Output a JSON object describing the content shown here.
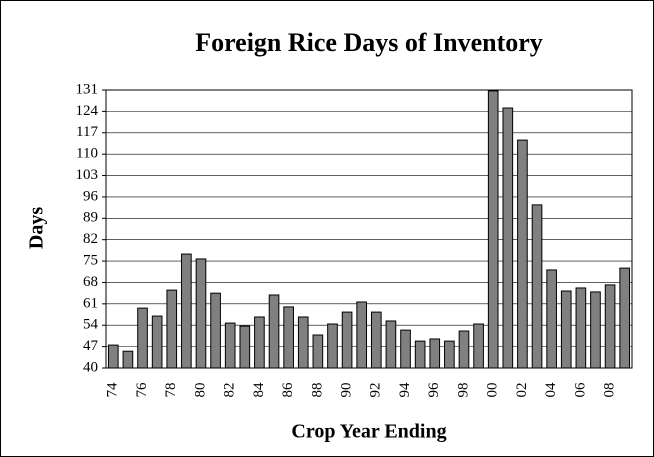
{
  "chart_data": {
    "type": "bar",
    "title": "Foreign Rice Days of Inventory",
    "x_label": "Crop Year Ending",
    "y_label": "Days",
    "categories": [
      "74",
      null,
      "76",
      null,
      "78",
      null,
      "80",
      null,
      "82",
      null,
      "84",
      null,
      "86",
      null,
      "88",
      null,
      "90",
      null,
      "92",
      null,
      "94",
      null,
      "96",
      null,
      "98",
      null,
      "00",
      null,
      "02",
      null,
      "04",
      null,
      "06",
      null,
      "08",
      null
    ],
    "values": [
      47.5,
      45.5,
      59.6,
      57,
      65.5,
      77.3,
      75.7,
      64.5,
      54.7,
      53.7,
      56.7,
      63.9,
      60,
      56.7,
      50.8,
      54.4,
      58.3,
      61.6,
      58.3,
      55.4,
      52.4,
      48.8,
      49.5,
      48.8,
      52.1,
      54.4,
      130.7,
      125.1,
      114.6,
      93.4,
      72.1,
      65.2,
      66.2,
      64.9,
      67.2,
      72.7
    ],
    "color": "#808080",
    "ylim": [
      40,
      131
    ],
    "yticks": [
      40,
      47,
      54,
      61,
      68,
      75,
      82,
      89,
      96,
      103,
      110,
      117,
      124,
      131
    ],
    "grid": true
  }
}
